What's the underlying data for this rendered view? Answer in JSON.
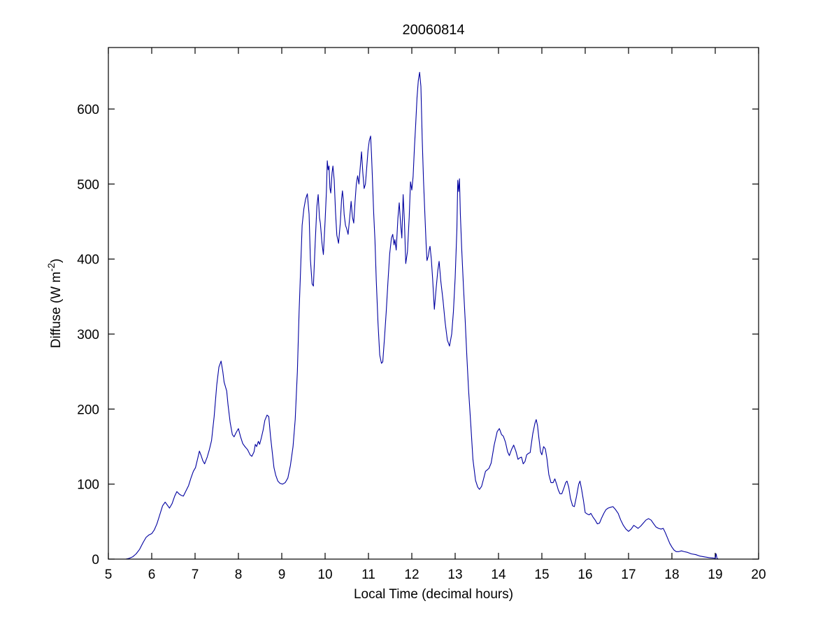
{
  "figure": {
    "background": "#ffffff"
  },
  "chart_data": {
    "type": "line",
    "title": "20060814",
    "xlabel": "Local Time (decimal hours)",
    "ylabel": "Diffuse (W m-2)",
    "ylabel_parts": {
      "main": "Diffuse (W m",
      "sup": "-2",
      "close": ")"
    },
    "xlim": [
      5,
      20
    ],
    "ylim": [
      0,
      682
    ],
    "x_ticks": [
      5,
      6,
      7,
      8,
      9,
      10,
      11,
      12,
      13,
      14,
      15,
      16,
      17,
      18,
      19,
      20
    ],
    "y_ticks": [
      0,
      100,
      200,
      300,
      400,
      500,
      600
    ],
    "grid": false,
    "line_color": "#0000A0",
    "axis_color": "#000000",
    "series": [
      {
        "name": "Diffuse",
        "points": [
          [
            5.4,
            0
          ],
          [
            5.48,
            1
          ],
          [
            5.56,
            3
          ],
          [
            5.64,
            7
          ],
          [
            5.72,
            13
          ],
          [
            5.8,
            22
          ],
          [
            5.87,
            29
          ],
          [
            5.93,
            32
          ],
          [
            6.0,
            34
          ],
          [
            6.06,
            39
          ],
          [
            6.12,
            47
          ],
          [
            6.18,
            58
          ],
          [
            6.25,
            71
          ],
          [
            6.31,
            76
          ],
          [
            6.36,
            72
          ],
          [
            6.41,
            68
          ],
          [
            6.47,
            74
          ],
          [
            6.53,
            84
          ],
          [
            6.58,
            90
          ],
          [
            6.63,
            87
          ],
          [
            6.68,
            85
          ],
          [
            6.73,
            84
          ],
          [
            6.79,
            91
          ],
          [
            6.85,
            98
          ],
          [
            6.91,
            109
          ],
          [
            6.96,
            117
          ],
          [
            7.01,
            122
          ],
          [
            7.06,
            134
          ],
          [
            7.1,
            144
          ],
          [
            7.14,
            138
          ],
          [
            7.18,
            131
          ],
          [
            7.22,
            127
          ],
          [
            7.28,
            136
          ],
          [
            7.33,
            146
          ],
          [
            7.38,
            158
          ],
          [
            7.44,
            190
          ],
          [
            7.5,
            232
          ],
          [
            7.55,
            256
          ],
          [
            7.6,
            264
          ],
          [
            7.64,
            250
          ],
          [
            7.67,
            236
          ],
          [
            7.7,
            230
          ],
          [
            7.73,
            224
          ],
          [
            7.76,
            206
          ],
          [
            7.81,
            182
          ],
          [
            7.86,
            166
          ],
          [
            7.9,
            163
          ],
          [
            7.95,
            169
          ],
          [
            8.0,
            174
          ],
          [
            8.05,
            163
          ],
          [
            8.1,
            154
          ],
          [
            8.15,
            150
          ],
          [
            8.21,
            146
          ],
          [
            8.27,
            139
          ],
          [
            8.31,
            137
          ],
          [
            8.36,
            143
          ],
          [
            8.39,
            153
          ],
          [
            8.42,
            150
          ],
          [
            8.46,
            157
          ],
          [
            8.49,
            153
          ],
          [
            8.53,
            162
          ],
          [
            8.57,
            172
          ],
          [
            8.61,
            185
          ],
          [
            8.66,
            192
          ],
          [
            8.7,
            190
          ],
          [
            8.74,
            164
          ],
          [
            8.78,
            143
          ],
          [
            8.82,
            122
          ],
          [
            8.86,
            112
          ],
          [
            8.91,
            104
          ],
          [
            8.96,
            101
          ],
          [
            9.02,
            100
          ],
          [
            9.08,
            102
          ],
          [
            9.14,
            108
          ],
          [
            9.2,
            125
          ],
          [
            9.26,
            150
          ],
          [
            9.31,
            186
          ],
          [
            9.36,
            250
          ],
          [
            9.4,
            330
          ],
          [
            9.44,
            395
          ],
          [
            9.47,
            445
          ],
          [
            9.51,
            467
          ],
          [
            9.55,
            480
          ],
          [
            9.59,
            487
          ],
          [
            9.63,
            460
          ],
          [
            9.66,
            400
          ],
          [
            9.7,
            367
          ],
          [
            9.73,
            364
          ],
          [
            9.77,
            420
          ],
          [
            9.81,
            470
          ],
          [
            9.84,
            486
          ],
          [
            9.87,
            455
          ],
          [
            9.89,
            448
          ],
          [
            9.93,
            420
          ],
          [
            9.96,
            406
          ],
          [
            10.0,
            451
          ],
          [
            10.03,
            490
          ],
          [
            10.05,
            531
          ],
          [
            10.07,
            519
          ],
          [
            10.09,
            524
          ],
          [
            10.11,
            495
          ],
          [
            10.13,
            488
          ],
          [
            10.16,
            515
          ],
          [
            10.18,
            524
          ],
          [
            10.21,
            505
          ],
          [
            10.24,
            463
          ],
          [
            10.27,
            432
          ],
          [
            10.31,
            421
          ],
          [
            10.35,
            448
          ],
          [
            10.38,
            480
          ],
          [
            10.4,
            491
          ],
          [
            10.42,
            479
          ],
          [
            10.44,
            459
          ],
          [
            10.47,
            445
          ],
          [
            10.5,
            440
          ],
          [
            10.53,
            433
          ],
          [
            10.57,
            457
          ],
          [
            10.6,
            477
          ],
          [
            10.63,
            456
          ],
          [
            10.66,
            448
          ],
          [
            10.69,
            476
          ],
          [
            10.72,
            500
          ],
          [
            10.75,
            511
          ],
          [
            10.78,
            500
          ],
          [
            10.81,
            522
          ],
          [
            10.84,
            543
          ],
          [
            10.87,
            515
          ],
          [
            10.9,
            494
          ],
          [
            10.93,
            500
          ],
          [
            10.96,
            522
          ],
          [
            10.99,
            545
          ],
          [
            11.02,
            558
          ],
          [
            11.05,
            564
          ],
          [
            11.07,
            540
          ],
          [
            11.09,
            510
          ],
          [
            11.12,
            462
          ],
          [
            11.15,
            425
          ],
          [
            11.18,
            372
          ],
          [
            11.22,
            315
          ],
          [
            11.26,
            272
          ],
          [
            11.3,
            261
          ],
          [
            11.33,
            263
          ],
          [
            11.37,
            295
          ],
          [
            11.41,
            330
          ],
          [
            11.45,
            370
          ],
          [
            11.49,
            407
          ],
          [
            11.53,
            428
          ],
          [
            11.56,
            433
          ],
          [
            11.59,
            419
          ],
          [
            11.61,
            426
          ],
          [
            11.64,
            412
          ],
          [
            11.68,
            455
          ],
          [
            11.71,
            475
          ],
          [
            11.74,
            448
          ],
          [
            11.77,
            428
          ],
          [
            11.8,
            486
          ],
          [
            11.83,
            450
          ],
          [
            11.86,
            394
          ],
          [
            11.9,
            410
          ],
          [
            11.94,
            456
          ],
          [
            11.97,
            503
          ],
          [
            12.0,
            492
          ],
          [
            12.03,
            510
          ],
          [
            12.06,
            548
          ],
          [
            12.09,
            580
          ],
          [
            12.12,
            615
          ],
          [
            12.15,
            638
          ],
          [
            12.18,
            649
          ],
          [
            12.21,
            630
          ],
          [
            12.24,
            560
          ],
          [
            12.27,
            505
          ],
          [
            12.3,
            462
          ],
          [
            12.33,
            420
          ],
          [
            12.35,
            398
          ],
          [
            12.38,
            404
          ],
          [
            12.4,
            412
          ],
          [
            12.42,
            417
          ],
          [
            12.45,
            400
          ],
          [
            12.48,
            374
          ],
          [
            12.52,
            333
          ],
          [
            12.56,
            360
          ],
          [
            12.6,
            385
          ],
          [
            12.63,
            397
          ],
          [
            12.67,
            370
          ],
          [
            12.72,
            345
          ],
          [
            12.77,
            315
          ],
          [
            12.82,
            292
          ],
          [
            12.87,
            284
          ],
          [
            12.92,
            300
          ],
          [
            12.96,
            330
          ],
          [
            13.0,
            375
          ],
          [
            13.04,
            440
          ],
          [
            13.06,
            505
          ],
          [
            13.08,
            490
          ],
          [
            13.1,
            507
          ],
          [
            13.12,
            460
          ],
          [
            13.15,
            415
          ],
          [
            13.19,
            365
          ],
          [
            13.23,
            320
          ],
          [
            13.27,
            270
          ],
          [
            13.31,
            225
          ],
          [
            13.36,
            180
          ],
          [
            13.41,
            133
          ],
          [
            13.47,
            105
          ],
          [
            13.52,
            96
          ],
          [
            13.56,
            93
          ],
          [
            13.61,
            97
          ],
          [
            13.66,
            108
          ],
          [
            13.7,
            117
          ],
          [
            13.74,
            119
          ],
          [
            13.78,
            121
          ],
          [
            13.83,
            128
          ],
          [
            13.9,
            152
          ],
          [
            13.97,
            170
          ],
          [
            14.02,
            174
          ],
          [
            14.07,
            166
          ],
          [
            14.11,
            164
          ],
          [
            14.16,
            156
          ],
          [
            14.21,
            143
          ],
          [
            14.25,
            138
          ],
          [
            14.3,
            146
          ],
          [
            14.35,
            152
          ],
          [
            14.4,
            144
          ],
          [
            14.45,
            133
          ],
          [
            14.49,
            135
          ],
          [
            14.53,
            136
          ],
          [
            14.57,
            127
          ],
          [
            14.61,
            130
          ],
          [
            14.65,
            139
          ],
          [
            14.69,
            141
          ],
          [
            14.73,
            142
          ],
          [
            14.79,
            167
          ],
          [
            14.84,
            181
          ],
          [
            14.87,
            186
          ],
          [
            14.9,
            178
          ],
          [
            14.93,
            162
          ],
          [
            14.97,
            143
          ],
          [
            15.0,
            139
          ],
          [
            15.04,
            150
          ],
          [
            15.08,
            147
          ],
          [
            15.12,
            133
          ],
          [
            15.16,
            113
          ],
          [
            15.21,
            102
          ],
          [
            15.26,
            102
          ],
          [
            15.3,
            107
          ],
          [
            15.34,
            100
          ],
          [
            15.38,
            92
          ],
          [
            15.42,
            87
          ],
          [
            15.46,
            87
          ],
          [
            15.51,
            95
          ],
          [
            15.55,
            102
          ],
          [
            15.58,
            104
          ],
          [
            15.62,
            96
          ],
          [
            15.66,
            81
          ],
          [
            15.71,
            71
          ],
          [
            15.75,
            70
          ],
          [
            15.8,
            84
          ],
          [
            15.85,
            100
          ],
          [
            15.88,
            104
          ],
          [
            15.92,
            92
          ],
          [
            15.96,
            78
          ],
          [
            16.0,
            62
          ],
          [
            16.05,
            60
          ],
          [
            16.09,
            59
          ],
          [
            16.13,
            61
          ],
          [
            16.18,
            56
          ],
          [
            16.23,
            52
          ],
          [
            16.28,
            47
          ],
          [
            16.33,
            48
          ],
          [
            16.38,
            55
          ],
          [
            16.43,
            61
          ],
          [
            16.48,
            66
          ],
          [
            16.53,
            68
          ],
          [
            16.58,
            69
          ],
          [
            16.64,
            70
          ],
          [
            16.7,
            66
          ],
          [
            16.76,
            61
          ],
          [
            16.82,
            52
          ],
          [
            16.88,
            45
          ],
          [
            16.94,
            40
          ],
          [
            17.0,
            37
          ],
          [
            17.06,
            40
          ],
          [
            17.12,
            45
          ],
          [
            17.17,
            43
          ],
          [
            17.22,
            41
          ],
          [
            17.28,
            44
          ],
          [
            17.34,
            48
          ],
          [
            17.4,
            52
          ],
          [
            17.46,
            54
          ],
          [
            17.52,
            52
          ],
          [
            17.58,
            47
          ],
          [
            17.63,
            43
          ],
          [
            17.69,
            41
          ],
          [
            17.75,
            40
          ],
          [
            17.8,
            41
          ],
          [
            17.85,
            35
          ],
          [
            17.9,
            28
          ],
          [
            17.95,
            21
          ],
          [
            18.0,
            16
          ],
          [
            18.05,
            12
          ],
          [
            18.1,
            10
          ],
          [
            18.16,
            10
          ],
          [
            18.22,
            11
          ],
          [
            18.28,
            10
          ],
          [
            18.36,
            9
          ],
          [
            18.45,
            7
          ],
          [
            18.55,
            6
          ],
          [
            18.65,
            4
          ],
          [
            18.75,
            3
          ],
          [
            18.85,
            2
          ],
          [
            18.95,
            1.5
          ],
          [
            19.0,
            1
          ],
          [
            19.02,
            7
          ],
          [
            19.04,
            1
          ],
          [
            19.07,
            0
          ]
        ]
      }
    ]
  }
}
